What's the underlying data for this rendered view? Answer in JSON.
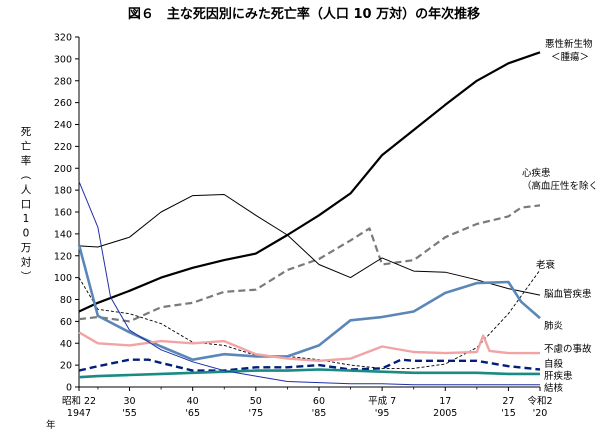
{
  "chart_data": {
    "type": "line",
    "title": "図６　主な死因別にみた死亡率（人口 10 万対）の年次推移",
    "ylabel": "死亡率（人口10万対）",
    "ylim": [
      0,
      320
    ],
    "yticks": [
      0,
      20,
      40,
      60,
      80,
      100,
      120,
      140,
      160,
      180,
      200,
      220,
      240,
      260,
      280,
      300,
      320
    ],
    "xlim": [
      1947,
      2020
    ],
    "grid": false,
    "x_ticks": [
      {
        "year": 1947,
        "top": "昭和 22",
        "bottom": "1947"
      },
      {
        "year": 1955,
        "top": "30",
        "bottom": "'55"
      },
      {
        "year": 1965,
        "top": "40",
        "bottom": "'65"
      },
      {
        "year": 1975,
        "top": "50",
        "bottom": "'75"
      },
      {
        "year": 1985,
        "top": "60",
        "bottom": "'85"
      },
      {
        "year": 1995,
        "top": "平成 7",
        "bottom": "'95"
      },
      {
        "year": 2005,
        "top": "17",
        "bottom": "2005"
      },
      {
        "year": 2015,
        "top": "27",
        "bottom": "'15"
      },
      {
        "year": 2020,
        "top": "令和2",
        "bottom": "'20"
      }
    ],
    "x_axis_unit": "年",
    "series": [
      {
        "name": "悪性新生物＜腫瘍＞",
        "color": "#000000",
        "style": "solid",
        "width": 2.2,
        "x": [
          1947,
          1950,
          1955,
          1960,
          1965,
          1970,
          1975,
          1980,
          1985,
          1990,
          1995,
          2000,
          2005,
          2010,
          2015,
          2020
        ],
        "y": [
          69,
          77,
          88,
          100,
          109,
          116,
          122,
          139,
          157,
          177,
          212,
          235,
          258,
          280,
          296,
          306
        ]
      },
      {
        "name": "心疾患＜高血圧性を除く＞",
        "color": "#7a7a7a",
        "style": "dash",
        "width": 2.2,
        "x": [
          1947,
          1950,
          1955,
          1960,
          1965,
          1970,
          1975,
          1980,
          1985,
          1990,
          1993,
          1995,
          2000,
          2005,
          2010,
          2015,
          2017,
          2020
        ],
        "y": [
          62,
          64,
          60,
          73,
          77,
          87,
          89,
          107,
          117,
          134,
          145,
          112,
          116,
          137,
          149,
          156,
          164,
          166
        ]
      },
      {
        "name": "老衰",
        "color": "#000000",
        "style": "dash-fine",
        "width": 0.9,
        "x": [
          1947,
          1950,
          1955,
          1960,
          1965,
          1970,
          1975,
          1980,
          1985,
          1990,
          1995,
          2000,
          2005,
          2010,
          2015,
          2020
        ],
        "y": [
          100,
          71,
          67,
          58,
          41,
          38,
          29,
          28,
          25,
          20,
          17,
          17,
          21,
          36,
          67,
          107
        ]
      },
      {
        "name": "脳血管疾患",
        "color": "#000000",
        "style": "solid",
        "width": 1,
        "x": [
          1947,
          1950,
          1955,
          1960,
          1965,
          1970,
          1975,
          1980,
          1985,
          1990,
          1995,
          2000,
          2005,
          2010,
          2015,
          2020
        ],
        "y": [
          129,
          128,
          137,
          160,
          175,
          176,
          157,
          139,
          112,
          100,
          118,
          106,
          105,
          98,
          90,
          84
        ]
      },
      {
        "name": "肺炎",
        "color": "#5b87b8",
        "style": "solid",
        "width": 2.6,
        "x": [
          1947,
          1950,
          1955,
          1960,
          1965,
          1970,
          1975,
          1980,
          1985,
          1990,
          1995,
          2000,
          2005,
          2010,
          2015,
          2017,
          2020
        ],
        "y": [
          130,
          65,
          50,
          37,
          25,
          30,
          28,
          28,
          38,
          61,
          64,
          69,
          86,
          95,
          96,
          78,
          63
        ]
      },
      {
        "name": "不慮の事故",
        "color": "#f2a4a4",
        "style": "solid",
        "width": 2.4,
        "x": [
          1947,
          1950,
          1955,
          1960,
          1965,
          1970,
          1975,
          1980,
          1985,
          1990,
          1995,
          2000,
          2005,
          2010,
          2011,
          2012,
          2015,
          2020
        ],
        "y": [
          50,
          40,
          38,
          42,
          40,
          42,
          30,
          26,
          24,
          26,
          37,
          32,
          31,
          32,
          47,
          33,
          31,
          31
        ]
      },
      {
        "name": "自殺",
        "color": "#001e7a",
        "style": "dash",
        "width": 2.4,
        "x": [
          1947,
          1950,
          1955,
          1958,
          1960,
          1965,
          1970,
          1975,
          1980,
          1985,
          1990,
          1995,
          1998,
          2000,
          2005,
          2010,
          2015,
          2020
        ],
        "y": [
          15,
          19,
          25,
          25,
          22,
          15,
          15,
          18,
          18,
          20,
          16,
          17,
          25,
          24,
          24,
          24,
          19,
          16
        ]
      },
      {
        "name": "肝疾患",
        "color": "#1a8a84",
        "style": "solid",
        "width": 2.6,
        "x": [
          1947,
          1950,
          1955,
          1960,
          1965,
          1970,
          1975,
          1980,
          1985,
          1990,
          1995,
          2000,
          2005,
          2010,
          2015,
          2020
        ],
        "y": [
          9,
          10,
          11,
          12,
          13,
          14,
          15,
          15,
          16,
          15,
          14,
          13,
          13,
          13,
          12,
          12
        ]
      },
      {
        "name": "結核",
        "color": "#1f2ea8",
        "style": "solid",
        "width": 1,
        "x": [
          1947,
          1950,
          1952,
          1955,
          1960,
          1965,
          1970,
          1975,
          1980,
          1985,
          1990,
          1995,
          2000,
          2005,
          2010,
          2015,
          2020
        ],
        "y": [
          188,
          146,
          82,
          52,
          34,
          23,
          15,
          10,
          5,
          4,
          3,
          3,
          2,
          2,
          2,
          2,
          2
        ]
      }
    ],
    "labels": [
      {
        "series": "悪性新生物＜腫瘍＞",
        "lines": [
          "悪性新生物",
          "＜腫瘍＞"
        ]
      },
      {
        "series": "心疾患＜高血圧性を除く＞",
        "lines": [
          "心疾患",
          "（高血圧性を除く"
        ]
      },
      {
        "series": "老衰",
        "lines": [
          "老衰"
        ]
      },
      {
        "series": "脳血管疾患",
        "lines": [
          "脳血管疾患"
        ]
      },
      {
        "series": "肺炎",
        "lines": [
          "肺炎"
        ]
      },
      {
        "series": "不慮の事故",
        "lines": [
          "不慮の事故"
        ]
      },
      {
        "series": "自殺",
        "lines": [
          "自殺"
        ]
      },
      {
        "series": "肝疾患",
        "lines": [
          "肝疾患"
        ]
      },
      {
        "series": "結核",
        "lines": [
          "結核"
        ]
      }
    ]
  }
}
